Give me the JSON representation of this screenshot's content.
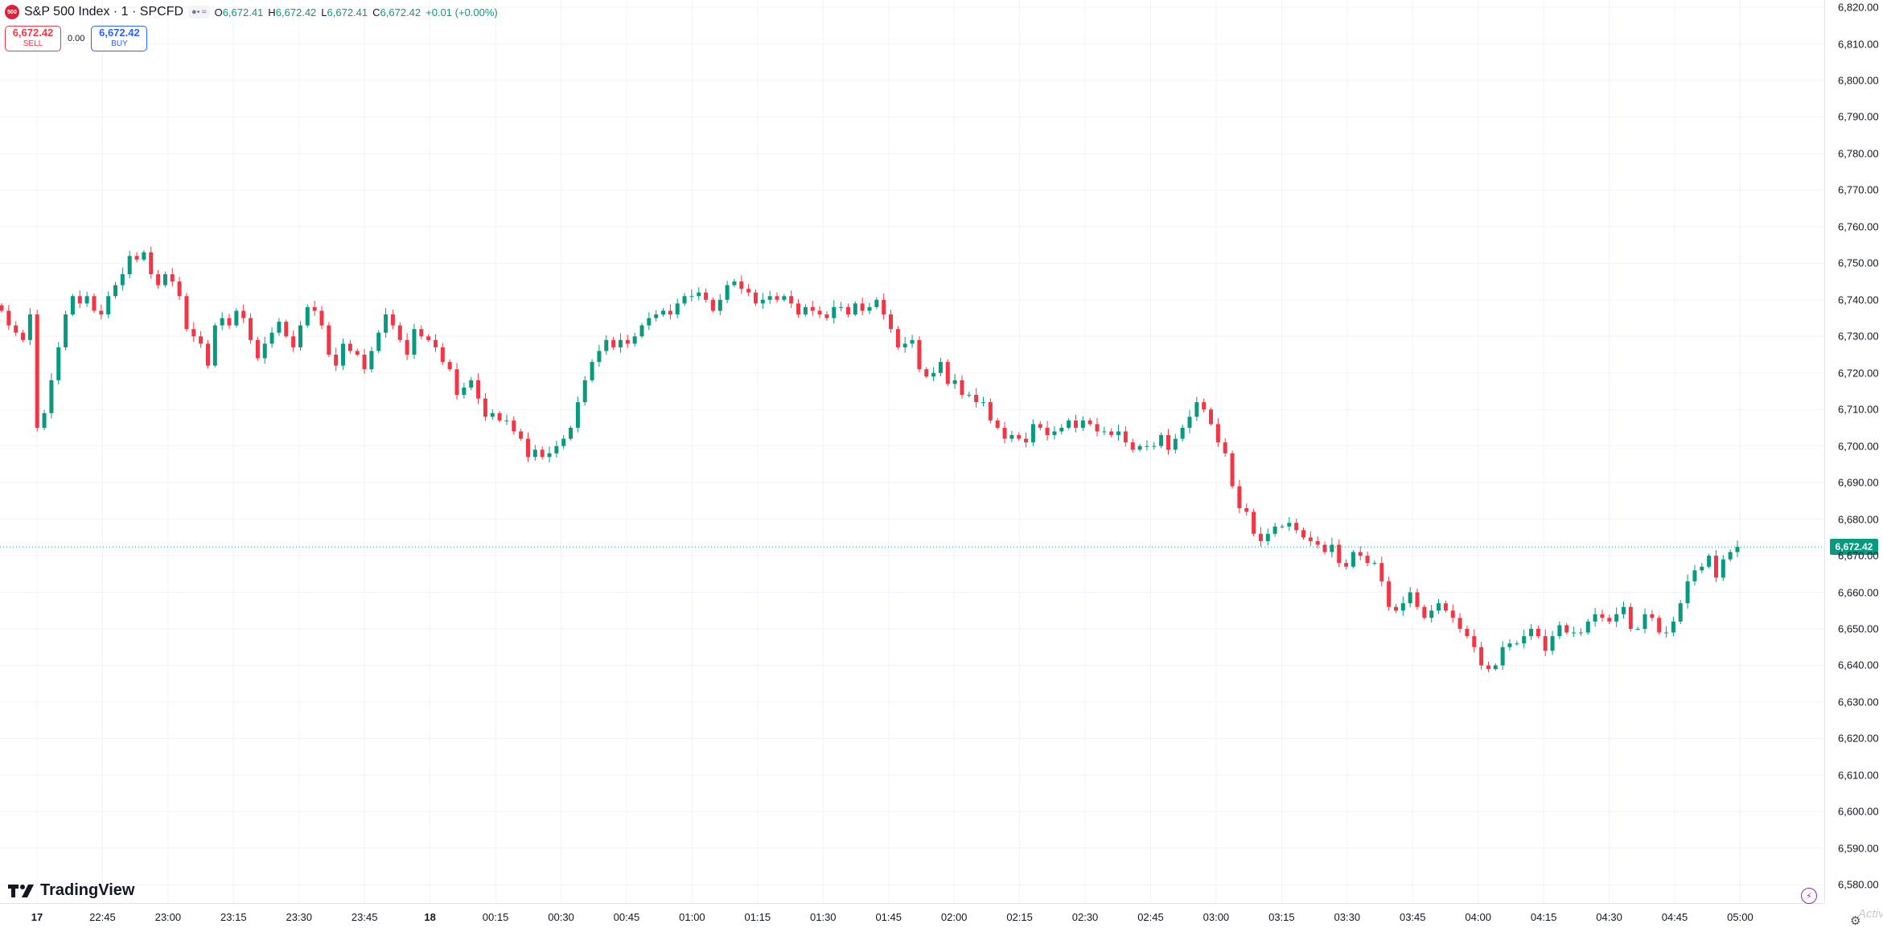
{
  "header": {
    "symbol_logo_text": "500",
    "symbol_title": "S&P 500 Index · 1 · SPCFD",
    "pill_icons": [
      "eye-icon",
      "approx-icon"
    ],
    "open_label": "O",
    "open_value": "6,672.41",
    "high_label": "H",
    "high_value": "6,672.42",
    "low_label": "L",
    "low_value": "6,672.41",
    "close_label": "C",
    "close_value": "6,672.42",
    "change": "+0.01 (+0.00%)"
  },
  "trade": {
    "sell_price": "6,672.42",
    "sell_label": "SELL",
    "spread": "0.00",
    "buy_price": "6,672.42",
    "buy_label": "BUY"
  },
  "branding": {
    "name": "TradingView"
  },
  "watermark": "Activ",
  "colors": {
    "up": "#089981",
    "down": "#f23645",
    "grid": "#f0f3fa",
    "axis_text": "#131722",
    "last_price_line": "#089981"
  },
  "chart_data": {
    "type": "candlestick",
    "title": "S&P 500 Index · 1 · SPCFD",
    "interval": "1 minute",
    "ylim": [
      6575,
      6822
    ],
    "y_ticks": [
      "6,580.00",
      "6,590.00",
      "6,600.00",
      "6,610.00",
      "6,620.00",
      "6,630.00",
      "6,640.00",
      "6,650.00",
      "6,660.00",
      "6,670.00",
      "6,680.00",
      "6,690.00",
      "6,700.00",
      "6,710.00",
      "6,720.00",
      "6,730.00",
      "6,740.00",
      "6,750.00",
      "6,760.00",
      "6,770.00",
      "6,780.00",
      "6,790.00",
      "6,800.00",
      "6,810.00",
      "6,820.00"
    ],
    "x_ticks": [
      {
        "label": "17",
        "day": true
      },
      {
        "label": "22:45"
      },
      {
        "label": "23:00"
      },
      {
        "label": "23:15"
      },
      {
        "label": "23:30"
      },
      {
        "label": "23:45"
      },
      {
        "label": "18",
        "day": true
      },
      {
        "label": "00:15"
      },
      {
        "label": "00:30"
      },
      {
        "label": "00:45"
      },
      {
        "label": "01:00"
      },
      {
        "label": "01:15"
      },
      {
        "label": "01:30"
      },
      {
        "label": "01:45"
      },
      {
        "label": "02:00"
      },
      {
        "label": "02:15"
      },
      {
        "label": "02:30"
      },
      {
        "label": "02:45"
      },
      {
        "label": "03:00"
      },
      {
        "label": "03:15"
      },
      {
        "label": "03:30"
      },
      {
        "label": "03:45"
      },
      {
        "label": "04:00"
      },
      {
        "label": "04:15"
      },
      {
        "label": "04:30"
      },
      {
        "label": "04:45"
      },
      {
        "label": "05:00"
      }
    ],
    "last_price": 6672.42,
    "last_price_label": "6,672.42",
    "closes": [
      6737,
      6733,
      6731,
      6729,
      6736,
      6705,
      6709,
      6718,
      6727,
      6736,
      6741,
      6739,
      6741,
      6737,
      6736,
      6741,
      6744,
      6747,
      6752,
      6751,
      6753,
      6747,
      6744,
      6747,
      6745,
      6741,
      6732,
      6730,
      6728,
      6722,
      6733,
      6735,
      6733,
      6737,
      6735,
      6729,
      6724,
      6728,
      6731,
      6734,
      6730,
      6727,
      6733,
      6738,
      6737,
      6733,
      6725,
      6722,
      6728,
      6726,
      6725,
      6721,
      6726,
      6731,
      6736,
      6733,
      6729,
      6725,
      6732,
      6730,
      6729,
      6727,
      6723,
      6721,
      6714,
      6716,
      6718,
      6713,
      6708,
      6709,
      6707,
      6707,
      6704,
      6702,
      6697,
      6699,
      6697,
      6698,
      6700,
      6702,
      6705,
      6712,
      6718,
      6723,
      6726,
      6729,
      6727,
      6729,
      6728,
      6730,
      6733,
      6735,
      6736,
      6737,
      6736,
      6739,
      6741,
      6741,
      6742,
      6740,
      6737,
      6740,
      6744,
      6745,
      6743,
      6742,
      6739,
      6740,
      6741,
      6740,
      6741,
      6739,
      6736,
      6738,
      6737,
      6736,
      6735,
      6738,
      6738,
      6736,
      6739,
      6737,
      6738,
      6740,
      6736,
      6732,
      6727,
      6728,
      6729,
      6721,
      6719,
      6720,
      6723,
      6717,
      6718,
      6714,
      6714,
      6712,
      6712,
      6707,
      6705,
      6702,
      6703,
      6702,
      6701,
      6706,
      6705,
      6703,
      6704,
      6705,
      6707,
      6705,
      6707,
      6706,
      6704,
      6704,
      6703,
      6704,
      6701,
      6699,
      6700,
      6700,
      6700,
      6703,
      6699,
      6702,
      6705,
      6708,
      6712,
      6710,
      6706,
      6701,
      6698,
      6689,
      6683,
      6682,
      6676,
      6674,
      6676,
      6678,
      6678,
      6679,
      6677,
      6675,
      6674,
      6673,
      6671,
      6673,
      6668,
      6667,
      6671,
      6670,
      6668,
      6668,
      6663,
      6656,
      6655,
      6657,
      6660,
      6656,
      6653,
      6655,
      6657,
      6655,
      6653,
      6650,
      6648,
      6645,
      6640,
      6639,
      6640,
      6645,
      6646,
      6646,
      6648,
      6650,
      6648,
      6644,
      6648,
      6651,
      6649,
      6649,
      6649,
      6652,
      6654,
      6653,
      6652,
      6654,
      6656,
      6650,
      6650,
      6654,
      6653,
      6649,
      6649,
      6652,
      6657,
      6663,
      6666,
      6667,
      6670,
      6664,
      6669,
      6671,
      6672.42
    ]
  }
}
